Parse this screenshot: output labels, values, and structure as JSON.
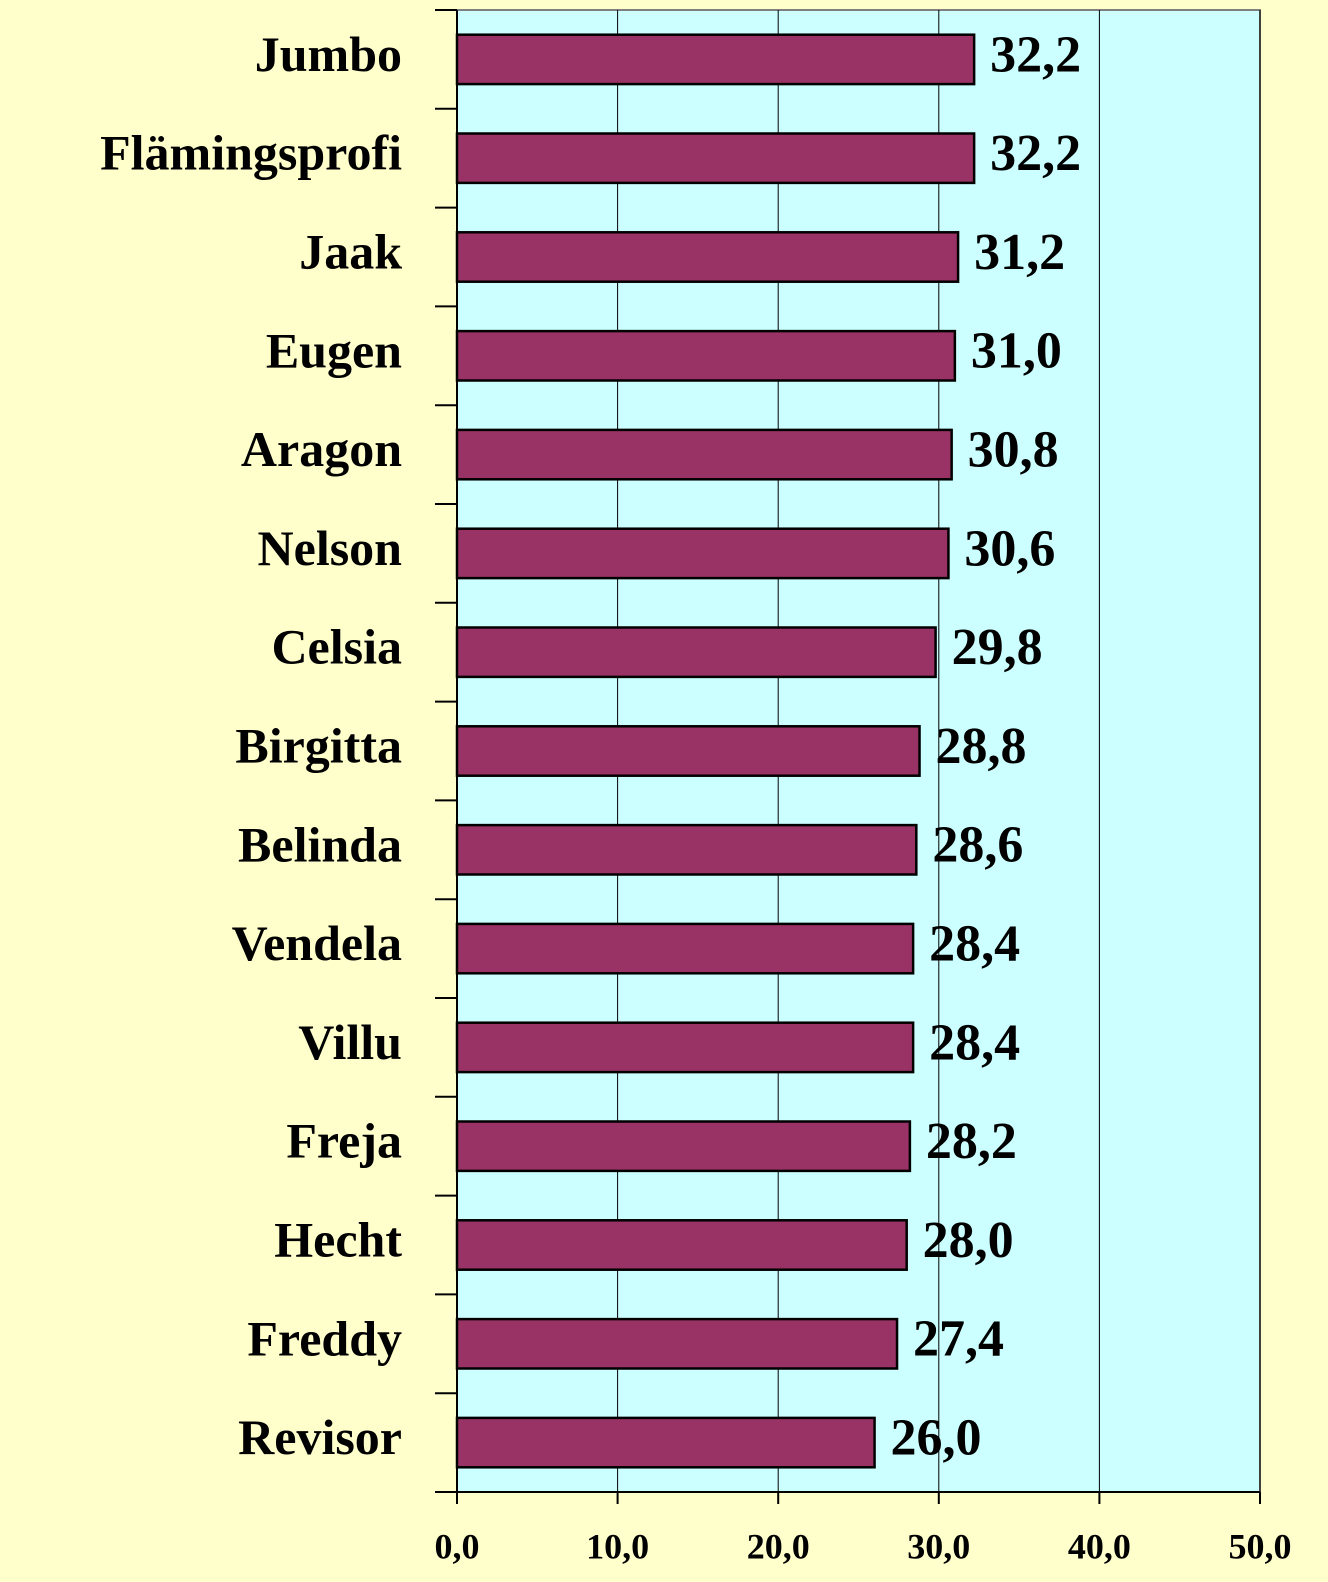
{
  "chart_data": {
    "type": "barh",
    "categories": [
      "Jumbo",
      "Flämingsprofi",
      "Jaak",
      "Eugen",
      "Aragon",
      "Nelson",
      "Celsia",
      "Birgitta",
      "Belinda",
      "Vendela",
      "Villu",
      "Freja",
      "Hecht",
      "Freddy",
      "Revisor"
    ],
    "values": [
      32.2,
      32.2,
      31.2,
      31.0,
      30.8,
      30.6,
      29.8,
      28.8,
      28.6,
      28.4,
      28.4,
      28.2,
      28.0,
      27.4,
      26.0
    ],
    "value_labels": [
      "32,2",
      "32,2",
      "31,2",
      "31,0",
      "30,8",
      "30,6",
      "29,8",
      "28,8",
      "28,6",
      "28,4",
      "28,4",
      "28,2",
      "28,0",
      "27,4",
      "26,0"
    ],
    "color": "#993366",
    "xlim": [
      0,
      50
    ],
    "xticks": [
      {
        "value": 0,
        "label": "0,0"
      },
      {
        "value": 10,
        "label": "10,0"
      },
      {
        "value": 20,
        "label": "20,0"
      },
      {
        "value": 30,
        "label": "30,0"
      },
      {
        "value": 40,
        "label": "40,0"
      },
      {
        "value": 50,
        "label": "50,0"
      }
    ],
    "grid": true
  }
}
